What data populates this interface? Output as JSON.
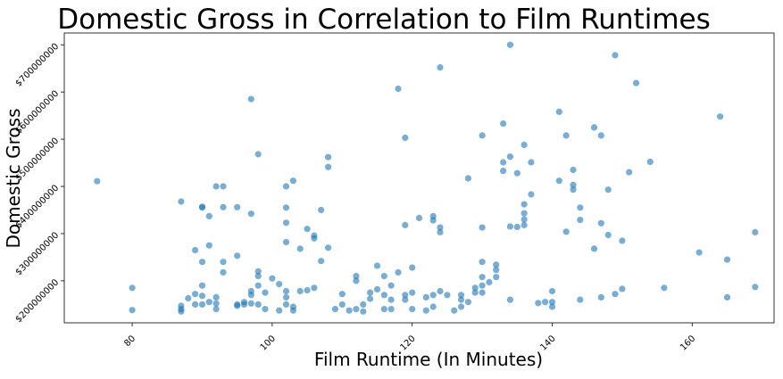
{
  "chart_data": {
    "type": "scatter",
    "title": "Domestic Gross in Correlation to Film Runtimes",
    "xlabel": "Film Runtime (In Minutes)",
    "ylabel": "Domestic Gross",
    "xlim": [
      70.3,
      171.7
    ],
    "ylim": [
      111000000,
      725000000
    ],
    "xticks": [
      80,
      100,
      120,
      140,
      160
    ],
    "xtick_labels": [
      "80",
      "100",
      "120",
      "140",
      "160"
    ],
    "yticks": [
      200000000,
      300000000,
      400000000,
      500000000,
      600000000,
      700000000
    ],
    "ytick_labels": [
      "$200000000",
      "$300000000",
      "$400000000",
      "$500000000",
      "$600000000",
      "$700000000"
    ],
    "grid": false,
    "legend": "none",
    "marker_color": "#1f77b4",
    "points": [
      {
        "x": 75,
        "y": 411000000
      },
      {
        "x": 80,
        "y": 185000000
      },
      {
        "x": 80,
        "y": 138000000
      },
      {
        "x": 87,
        "y": 368000000
      },
      {
        "x": 87,
        "y": 147000000
      },
      {
        "x": 87,
        "y": 140000000
      },
      {
        "x": 87,
        "y": 135000000
      },
      {
        "x": 88,
        "y": 163000000
      },
      {
        "x": 89,
        "y": 265000000
      },
      {
        "x": 89,
        "y": 172000000
      },
      {
        "x": 89,
        "y": 150000000
      },
      {
        "x": 90,
        "y": 357000000
      },
      {
        "x": 90,
        "y": 355000000
      },
      {
        "x": 90,
        "y": 240000000
      },
      {
        "x": 90,
        "y": 190000000
      },
      {
        "x": 90,
        "y": 168000000
      },
      {
        "x": 90,
        "y": 150000000
      },
      {
        "x": 91,
        "y": 337000000
      },
      {
        "x": 91,
        "y": 275000000
      },
      {
        "x": 91,
        "y": 155000000
      },
      {
        "x": 92,
        "y": 400000000
      },
      {
        "x": 92,
        "y": 165000000
      },
      {
        "x": 92,
        "y": 152000000
      },
      {
        "x": 92,
        "y": 140000000
      },
      {
        "x": 93,
        "y": 400000000
      },
      {
        "x": 93,
        "y": 356000000
      },
      {
        "x": 93,
        "y": 240000000
      },
      {
        "x": 93,
        "y": 218000000
      },
      {
        "x": 95,
        "y": 356000000
      },
      {
        "x": 95,
        "y": 253000000
      },
      {
        "x": 95,
        "y": 150000000
      },
      {
        "x": 95,
        "y": 147000000
      },
      {
        "x": 96,
        "y": 155000000
      },
      {
        "x": 96,
        "y": 150000000
      },
      {
        "x": 97,
        "y": 585000000
      },
      {
        "x": 97,
        "y": 342000000
      },
      {
        "x": 97,
        "y": 178000000
      },
      {
        "x": 97,
        "y": 170000000
      },
      {
        "x": 97,
        "y": 152000000
      },
      {
        "x": 98,
        "y": 468000000
      },
      {
        "x": 98,
        "y": 220000000
      },
      {
        "x": 98,
        "y": 210000000
      },
      {
        "x": 98,
        "y": 190000000
      },
      {
        "x": 98,
        "y": 150000000
      },
      {
        "x": 99,
        "y": 175000000
      },
      {
        "x": 99,
        "y": 140000000
      },
      {
        "x": 100,
        "y": 205000000
      },
      {
        "x": 101,
        "y": 193000000
      },
      {
        "x": 101,
        "y": 137000000
      },
      {
        "x": 102,
        "y": 400000000
      },
      {
        "x": 102,
        "y": 355000000
      },
      {
        "x": 102,
        "y": 323000000
      },
      {
        "x": 102,
        "y": 282000000
      },
      {
        "x": 102,
        "y": 178000000
      },
      {
        "x": 102,
        "y": 165000000
      },
      {
        "x": 102,
        "y": 150000000
      },
      {
        "x": 103,
        "y": 412000000
      },
      {
        "x": 103,
        "y": 145000000
      },
      {
        "x": 103,
        "y": 137000000
      },
      {
        "x": 104,
        "y": 268000000
      },
      {
        "x": 104,
        "y": 178000000
      },
      {
        "x": 105,
        "y": 310000000
      },
      {
        "x": 105,
        "y": 180000000
      },
      {
        "x": 106,
        "y": 296000000
      },
      {
        "x": 106,
        "y": 290000000
      },
      {
        "x": 106,
        "y": 185000000
      },
      {
        "x": 107,
        "y": 350000000
      },
      {
        "x": 107,
        "y": 242000000
      },
      {
        "x": 108,
        "y": 462000000
      },
      {
        "x": 108,
        "y": 441000000
      },
      {
        "x": 108,
        "y": 270000000
      },
      {
        "x": 109,
        "y": 140000000
      },
      {
        "x": 110,
        "y": 172000000
      },
      {
        "x": 110,
        "y": 150000000
      },
      {
        "x": 111,
        "y": 137000000
      },
      {
        "x": 112,
        "y": 210000000
      },
      {
        "x": 112,
        "y": 200000000
      },
      {
        "x": 112,
        "y": 140000000
      },
      {
        "x": 113,
        "y": 150000000
      },
      {
        "x": 113,
        "y": 135000000
      },
      {
        "x": 114,
        "y": 175000000
      },
      {
        "x": 114,
        "y": 162000000
      },
      {
        "x": 115,
        "y": 232000000
      },
      {
        "x": 115,
        "y": 182000000
      },
      {
        "x": 116,
        "y": 210000000
      },
      {
        "x": 116,
        "y": 170000000
      },
      {
        "x": 116,
        "y": 140000000
      },
      {
        "x": 117,
        "y": 190000000
      },
      {
        "x": 117,
        "y": 160000000
      },
      {
        "x": 117,
        "y": 140000000
      },
      {
        "x": 118,
        "y": 607000000
      },
      {
        "x": 118,
        "y": 218000000
      },
      {
        "x": 119,
        "y": 503000000
      },
      {
        "x": 119,
        "y": 318000000
      },
      {
        "x": 119,
        "y": 170000000
      },
      {
        "x": 119,
        "y": 160000000
      },
      {
        "x": 120,
        "y": 228000000
      },
      {
        "x": 120,
        "y": 175000000
      },
      {
        "x": 120,
        "y": 140000000
      },
      {
        "x": 121,
        "y": 333000000
      },
      {
        "x": 122,
        "y": 165000000
      },
      {
        "x": 122,
        "y": 137000000
      },
      {
        "x": 123,
        "y": 337000000
      },
      {
        "x": 123,
        "y": 328000000
      },
      {
        "x": 123,
        "y": 170000000
      },
      {
        "x": 123,
        "y": 145000000
      },
      {
        "x": 124,
        "y": 652000000
      },
      {
        "x": 124,
        "y": 313000000
      },
      {
        "x": 124,
        "y": 303000000
      },
      {
        "x": 124,
        "y": 178000000
      },
      {
        "x": 125,
        "y": 170000000
      },
      {
        "x": 126,
        "y": 137000000
      },
      {
        "x": 127,
        "y": 170000000
      },
      {
        "x": 127,
        "y": 160000000
      },
      {
        "x": 127,
        "y": 145000000
      },
      {
        "x": 128,
        "y": 417000000
      },
      {
        "x": 128,
        "y": 155000000
      },
      {
        "x": 129,
        "y": 185000000
      },
      {
        "x": 129,
        "y": 175000000
      },
      {
        "x": 130,
        "y": 508000000
      },
      {
        "x": 130,
        "y": 313000000
      },
      {
        "x": 130,
        "y": 240000000
      },
      {
        "x": 130,
        "y": 208000000
      },
      {
        "x": 130,
        "y": 190000000
      },
      {
        "x": 130,
        "y": 175000000
      },
      {
        "x": 131,
        "y": 197000000
      },
      {
        "x": 132,
        "y": 234000000
      },
      {
        "x": 132,
        "y": 223000000
      },
      {
        "x": 132,
        "y": 208000000
      },
      {
        "x": 133,
        "y": 533000000
      },
      {
        "x": 133,
        "y": 451000000
      },
      {
        "x": 133,
        "y": 433000000
      },
      {
        "x": 134,
        "y": 700000000
      },
      {
        "x": 134,
        "y": 463000000
      },
      {
        "x": 134,
        "y": 315000000
      },
      {
        "x": 134,
        "y": 160000000
      },
      {
        "x": 135,
        "y": 428000000
      },
      {
        "x": 135,
        "y": 314000000
      },
      {
        "x": 136,
        "y": 488000000
      },
      {
        "x": 136,
        "y": 362000000
      },
      {
        "x": 136,
        "y": 343000000
      },
      {
        "x": 136,
        "y": 330000000
      },
      {
        "x": 136,
        "y": 318000000
      },
      {
        "x": 137,
        "y": 451000000
      },
      {
        "x": 137,
        "y": 383000000
      },
      {
        "x": 138,
        "y": 153000000
      },
      {
        "x": 139,
        "y": 155000000
      },
      {
        "x": 140,
        "y": 178000000
      },
      {
        "x": 140,
        "y": 155000000
      },
      {
        "x": 140,
        "y": 145000000
      },
      {
        "x": 141,
        "y": 558000000
      },
      {
        "x": 141,
        "y": 412000000
      },
      {
        "x": 142,
        "y": 508000000
      },
      {
        "x": 142,
        "y": 304000000
      },
      {
        "x": 143,
        "y": 435000000
      },
      {
        "x": 143,
        "y": 403000000
      },
      {
        "x": 143,
        "y": 393000000
      },
      {
        "x": 144,
        "y": 355000000
      },
      {
        "x": 144,
        "y": 329000000
      },
      {
        "x": 144,
        "y": 160000000
      },
      {
        "x": 146,
        "y": 525000000
      },
      {
        "x": 146,
        "y": 268000000
      },
      {
        "x": 147,
        "y": 508000000
      },
      {
        "x": 147,
        "y": 322000000
      },
      {
        "x": 147,
        "y": 165000000
      },
      {
        "x": 148,
        "y": 393000000
      },
      {
        "x": 148,
        "y": 297000000
      },
      {
        "x": 149,
        "y": 678000000
      },
      {
        "x": 149,
        "y": 172000000
      },
      {
        "x": 150,
        "y": 285000000
      },
      {
        "x": 150,
        "y": 183000000
      },
      {
        "x": 151,
        "y": 430000000
      },
      {
        "x": 152,
        "y": 619000000
      },
      {
        "x": 154,
        "y": 452000000
      },
      {
        "x": 156,
        "y": 185000000
      },
      {
        "x": 161,
        "y": 260000000
      },
      {
        "x": 164,
        "y": 548000000
      },
      {
        "x": 165,
        "y": 245000000
      },
      {
        "x": 165,
        "y": 165000000
      },
      {
        "x": 169,
        "y": 303000000
      },
      {
        "x": 169,
        "y": 187000000
      }
    ]
  }
}
